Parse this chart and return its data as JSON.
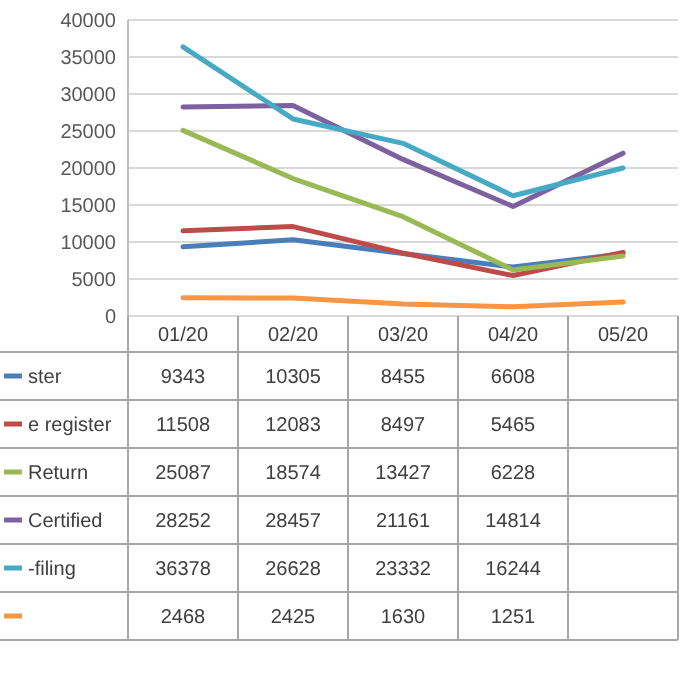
{
  "chart_data": {
    "type": "line",
    "categories": [
      "01/20",
      "02/20",
      "03/20",
      "04/20",
      "05/20"
    ],
    "ylim": [
      0,
      40000
    ],
    "yticks": [
      0,
      5000,
      10000,
      15000,
      20000,
      25000,
      30000,
      35000,
      40000
    ],
    "grid": "y",
    "legend": "bottom",
    "marker": "none",
    "line_style": "solid",
    "series": [
      {
        "name": "ster",
        "color": "#4a7ebb",
        "values": [
          9343,
          10305,
          8455,
          6608,
          8400
        ],
        "value_labels": [
          "9343",
          "10305",
          "8455",
          "6608",
          null
        ]
      },
      {
        "name": "e register",
        "color": "#be4b48",
        "values": [
          11508,
          12083,
          8497,
          5465,
          8600
        ],
        "value_labels": [
          "11508",
          "12083",
          "8497",
          "5465",
          null
        ]
      },
      {
        "name": "Return",
        "color": "#98b954",
        "values": [
          25087,
          18574,
          13427,
          6228,
          8100
        ],
        "value_labels": [
          "25087",
          "18574",
          "13427",
          "6228",
          null
        ]
      },
      {
        "name": "Certified",
        "color": "#7d60a0",
        "values": [
          28252,
          28457,
          21161,
          14814,
          22000
        ],
        "value_labels": [
          "28252",
          "28457",
          "21161",
          "14814",
          null
        ]
      },
      {
        "name": "-filing",
        "color": "#46aac5",
        "values": [
          36378,
          26628,
          23332,
          16244,
          20000
        ],
        "value_labels": [
          "36378",
          "26628",
          "23332",
          "16244",
          null
        ]
      },
      {
        "color": "#f79646",
        "values": [
          2468,
          2425,
          1630,
          1251,
          1900
        ],
        "value_labels": [
          "2468",
          "2425",
          "1630",
          "1251",
          null
        ]
      }
    ]
  }
}
